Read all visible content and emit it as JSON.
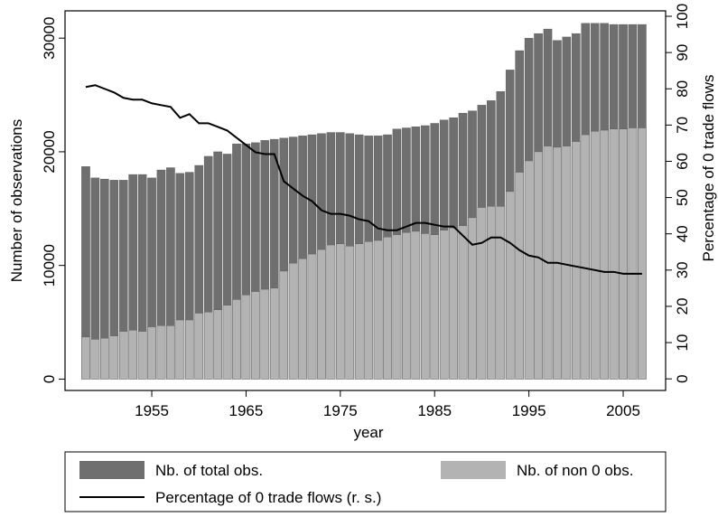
{
  "chart_data": {
    "type": "bar",
    "x": [
      1948,
      1949,
      1950,
      1951,
      1952,
      1953,
      1954,
      1955,
      1956,
      1957,
      1958,
      1959,
      1960,
      1961,
      1962,
      1963,
      1964,
      1965,
      1966,
      1967,
      1968,
      1969,
      1970,
      1971,
      1972,
      1973,
      1974,
      1975,
      1976,
      1977,
      1978,
      1979,
      1980,
      1981,
      1982,
      1983,
      1984,
      1985,
      1986,
      1987,
      1988,
      1989,
      1990,
      1991,
      1992,
      1993,
      1994,
      1995,
      1996,
      1997,
      1998,
      1999,
      2000,
      2001,
      2002,
      2003,
      2004,
      2005,
      2006,
      2007
    ],
    "x_label": "year",
    "y_label": "Number of observations",
    "y2_label": "Percentage of 0 trade flows",
    "xlim": [
      1945.8,
      2009.5
    ],
    "xticks": [
      1955,
      1965,
      1975,
      1985,
      1995,
      2005
    ],
    "ylim": [
      -1000,
      32400
    ],
    "yticks": [
      0,
      10000,
      20000,
      30000
    ],
    "y2lim": [
      -3.2,
      101.5
    ],
    "y2ticks": [
      0,
      10,
      20,
      30,
      40,
      50,
      60,
      70,
      80,
      90,
      100
    ],
    "series": [
      {
        "name": "Nb. of total obs.",
        "type": "bar",
        "color": "#6f6f6f",
        "values": [
          18700,
          17700,
          17600,
          17500,
          17500,
          18000,
          18000,
          17700,
          18400,
          18600,
          18100,
          18200,
          18800,
          19600,
          20000,
          19800,
          20700,
          20700,
          20800,
          21000,
          21100,
          21200,
          21300,
          21400,
          21500,
          21600,
          21700,
          21700,
          21600,
          21500,
          21400,
          21400,
          21500,
          22000,
          22100,
          22200,
          22300,
          22500,
          22800,
          23000,
          23400,
          23600,
          24100,
          24500,
          25300,
          27200,
          28900,
          30000,
          30400,
          30800,
          29800,
          30100,
          30400,
          31300,
          31300,
          31300,
          31200,
          31200,
          31200,
          31200
        ]
      },
      {
        "name": "Nb. of non 0 obs.",
        "type": "bar",
        "color": "#b3b3b3",
        "values": [
          3700,
          3500,
          3600,
          3800,
          4200,
          4300,
          4200,
          4600,
          4700,
          4700,
          5200,
          5200,
          5800,
          5900,
          6100,
          6500,
          7000,
          7400,
          7700,
          7900,
          8000,
          9500,
          10200,
          10600,
          11000,
          11400,
          11800,
          11900,
          11700,
          11900,
          12100,
          12200,
          12500,
          12700,
          12900,
          13000,
          12800,
          12700,
          13100,
          13300,
          13500,
          14200,
          15100,
          15200,
          15200,
          16500,
          18200,
          19200,
          20000,
          20500,
          20400,
          20500,
          20900,
          21500,
          21800,
          21900,
          22000,
          22000,
          22100,
          22100
        ]
      },
      {
        "name": "Percentage of 0 trade flows (r. s.)",
        "type": "line",
        "axis": "y2",
        "color": "#000000",
        "values": [
          80.5,
          81,
          80,
          79,
          77.5,
          77,
          77,
          76,
          75.5,
          75,
          72,
          73,
          70.5,
          70.5,
          69.5,
          68.5,
          66.5,
          64.5,
          62.5,
          62,
          62,
          54.5,
          52.5,
          50.5,
          49,
          46.5,
          45.5,
          45.5,
          45,
          44,
          43.5,
          41.5,
          41,
          41,
          42,
          43,
          43,
          42.5,
          42,
          42,
          39.5,
          37,
          37.5,
          39,
          39,
          37.5,
          35.5,
          34,
          33.5,
          32,
          32,
          31.5,
          31,
          30.5,
          30,
          29.5,
          29.5,
          29,
          29,
          29
        ]
      }
    ]
  }
}
